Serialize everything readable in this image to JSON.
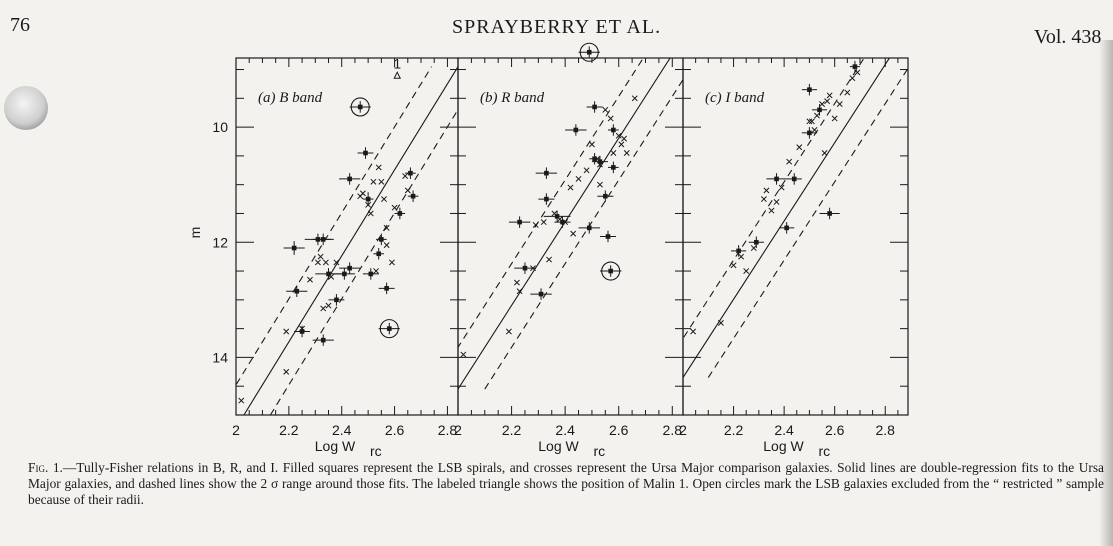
{
  "header": {
    "page_number": "76",
    "running_head": "SPRAYBERRY ET AL.",
    "volume": "Vol. 438"
  },
  "caption": {
    "lead": "Fig. 1.",
    "text": "—Tully-Fisher relations in B, R, and I. Filled squares represent the LSB spirals, and crosses represent the Ursa Major comparison galaxies. Solid lines are double-regression fits to the Ursa Major galaxies, and dashed lines show the 2 σ range around those fits. The labeled triangle shows the position of Malin 1. Open circles mark the LSB galaxies excluded from the “ restricted ” sample because of their radii."
  },
  "colors": {
    "ink": "#1a1a1a",
    "paper": "#f4f2ee"
  },
  "chart_data": [
    {
      "type": "scatter",
      "panel_label": "(a) B band",
      "xlabel": "Log W",
      "xlabel_sub": "rc",
      "ylabel": "m",
      "xlim": [
        2.0,
        2.84
      ],
      "ylim": [
        15.0,
        8.8
      ],
      "x_ticks": [
        "2",
        "2.2",
        "2.4",
        "2.6",
        "2.8"
      ],
      "y_ticks": [
        "10",
        "12",
        "14"
      ],
      "malin_label": "1",
      "fit": {
        "solid": [
          [
            2.03,
            15.0
          ],
          [
            2.84,
            8.95
          ]
        ],
        "dashed_offset": 0.1
      },
      "lsb": [
        [
          2.22,
          12.1,
          0.04,
          0.12
        ],
        [
          2.23,
          12.85,
          0.04,
          0.1
        ],
        [
          2.31,
          11.95,
          0.05,
          0.1
        ],
        [
          2.33,
          11.95,
          0.04,
          0.1
        ],
        [
          2.35,
          12.55,
          0.05,
          0.1
        ],
        [
          2.41,
          12.55,
          0.04,
          0.1
        ],
        [
          2.43,
          12.45,
          0.04,
          0.1
        ],
        [
          2.43,
          10.9,
          0.04,
          0.1
        ],
        [
          2.49,
          10.45,
          0.03,
          0.1
        ],
        [
          2.5,
          11.25,
          0.02,
          0.12
        ],
        [
          2.51,
          12.55,
          0.03,
          0.1
        ],
        [
          2.54,
          12.2,
          0.02,
          0.1
        ],
        [
          2.55,
          11.95,
          0.02,
          0.1
        ],
        [
          2.57,
          12.8,
          0.03,
          0.1
        ],
        [
          2.62,
          11.5,
          0.02,
          0.1
        ],
        [
          2.66,
          10.8,
          0.02,
          0.1
        ],
        [
          2.67,
          11.2,
          0.02,
          0.1
        ],
        [
          2.38,
          13.0,
          0.03,
          0.1
        ],
        [
          2.33,
          13.7,
          0.04,
          0.1
        ],
        [
          2.25,
          13.55,
          0.03,
          0.1
        ]
      ],
      "lsb_circled": [
        [
          2.47,
          9.65
        ],
        [
          2.58,
          13.5
        ]
      ],
      "crosses": [
        [
          2.02,
          14.75
        ],
        [
          2.19,
          13.55
        ],
        [
          2.19,
          14.25
        ],
        [
          2.25,
          13.5
        ],
        [
          2.28,
          12.65
        ],
        [
          2.33,
          13.15
        ],
        [
          2.35,
          13.1
        ],
        [
          2.31,
          12.35
        ],
        [
          2.32,
          12.25
        ],
        [
          2.36,
          12.6
        ],
        [
          2.38,
          12.35
        ],
        [
          2.47,
          11.2
        ],
        [
          2.48,
          11.15
        ],
        [
          2.5,
          11.35
        ],
        [
          2.51,
          11.5
        ],
        [
          2.52,
          10.95
        ],
        [
          2.54,
          10.7
        ],
        [
          2.55,
          10.95
        ],
        [
          2.56,
          11.25
        ],
        [
          2.57,
          11.75
        ],
        [
          2.6,
          11.4
        ],
        [
          2.64,
          10.85
        ],
        [
          2.65,
          11.1
        ],
        [
          2.57,
          12.05
        ],
        [
          2.59,
          12.35
        ],
        [
          2.53,
          12.5
        ],
        [
          2.34,
          12.35
        ]
      ],
      "malin": [
        2.61,
        9.1
      ]
    },
    {
      "type": "scatter",
      "panel_label": "(b) R band",
      "xlabel": "Log W",
      "xlabel_sub": "rc",
      "xlim": [
        2.0,
        2.84
      ],
      "ylim": [
        15.0,
        8.8
      ],
      "x_ticks": [
        "2",
        "2.2",
        "2.4",
        "2.6",
        "2.8"
      ],
      "fit": {
        "solid": [
          [
            2.0,
            14.55
          ],
          [
            2.84,
            8.45
          ]
        ],
        "dashed_offset": 0.1
      },
      "lsb": [
        [
          2.23,
          11.65,
          0.04,
          0.1
        ],
        [
          2.25,
          12.45,
          0.04,
          0.1
        ],
        [
          2.31,
          12.9,
          0.04,
          0.1
        ],
        [
          2.33,
          10.8,
          0.04,
          0.1
        ],
        [
          2.33,
          11.25,
          0.03,
          0.1
        ],
        [
          2.37,
          11.55,
          0.05,
          0.1
        ],
        [
          2.39,
          11.65,
          0.03,
          0.1
        ],
        [
          2.44,
          10.05,
          0.04,
          0.1
        ],
        [
          2.49,
          11.75,
          0.04,
          0.1
        ],
        [
          2.51,
          9.65,
          0.03,
          0.1
        ],
        [
          2.51,
          10.55,
          0.02,
          0.1
        ],
        [
          2.53,
          10.6,
          0.03,
          0.1
        ],
        [
          2.55,
          11.2,
          0.03,
          0.1
        ],
        [
          2.56,
          11.9,
          0.03,
          0.1
        ],
        [
          2.58,
          10.05,
          0.02,
          0.1
        ],
        [
          2.58,
          10.7,
          0.02,
          0.1
        ]
      ],
      "lsb_circled": [
        [
          2.49,
          8.7
        ],
        [
          2.57,
          12.5
        ]
      ],
      "crosses": [
        [
          2.02,
          13.95
        ],
        [
          2.19,
          13.55
        ],
        [
          2.22,
          12.7
        ],
        [
          2.23,
          12.85
        ],
        [
          2.28,
          12.45
        ],
        [
          2.29,
          11.7
        ],
        [
          2.32,
          11.65
        ],
        [
          2.34,
          12.3
        ],
        [
          2.36,
          11.5
        ],
        [
          2.38,
          11.6
        ],
        [
          2.4,
          11.65
        ],
        [
          2.42,
          11.05
        ],
        [
          2.43,
          11.85
        ],
        [
          2.45,
          10.9
        ],
        [
          2.48,
          10.75
        ],
        [
          2.5,
          10.3
        ],
        [
          2.52,
          10.55
        ],
        [
          2.53,
          10.65
        ],
        [
          2.55,
          9.7
        ],
        [
          2.57,
          9.85
        ],
        [
          2.58,
          10.45
        ],
        [
          2.6,
          10.15
        ],
        [
          2.61,
          10.3
        ],
        [
          2.62,
          10.2
        ],
        [
          2.63,
          10.45
        ],
        [
          2.66,
          9.5
        ],
        [
          2.53,
          11.0
        ]
      ],
      "malin": null
    },
    {
      "type": "scatter",
      "panel_label": "(c) I band",
      "xlabel": "Log W",
      "xlabel_sub": "rc",
      "xlim": [
        2.0,
        2.89
      ],
      "ylim": [
        15.0,
        8.8
      ],
      "x_ticks": [
        "2",
        "2.2",
        "2.4",
        "2.6",
        "2.8"
      ],
      "fit": {
        "solid": [
          [
            2.0,
            14.35
          ],
          [
            2.89,
            8.3
          ]
        ],
        "dashed_offset": 0.1
      },
      "lsb": [
        [
          2.22,
          12.15,
          0.03,
          0.1
        ],
        [
          2.29,
          12.0,
          0.03,
          0.1
        ],
        [
          2.37,
          10.9,
          0.04,
          0.1
        ],
        [
          2.41,
          11.75,
          0.03,
          0.1
        ],
        [
          2.44,
          10.9,
          0.03,
          0.1
        ],
        [
          2.5,
          9.35,
          0.03,
          0.1
        ],
        [
          2.5,
          10.1,
          0.03,
          0.1
        ],
        [
          2.54,
          9.7,
          0.03,
          0.1
        ],
        [
          2.58,
          11.5,
          0.04,
          0.1
        ],
        [
          2.68,
          8.95,
          0.02,
          0.1
        ]
      ],
      "lsb_circled": [],
      "crosses": [
        [
          2.04,
          13.55
        ],
        [
          2.15,
          13.4
        ],
        [
          2.2,
          12.4
        ],
        [
          2.23,
          12.25
        ],
        [
          2.25,
          12.5
        ],
        [
          2.28,
          12.1
        ],
        [
          2.32,
          11.25
        ],
        [
          2.33,
          11.1
        ],
        [
          2.35,
          11.45
        ],
        [
          2.37,
          11.3
        ],
        [
          2.39,
          11.05
        ],
        [
          2.42,
          10.6
        ],
        [
          2.46,
          10.35
        ],
        [
          2.5,
          9.9
        ],
        [
          2.51,
          9.9
        ],
        [
          2.53,
          9.8
        ],
        [
          2.55,
          9.6
        ],
        [
          2.57,
          9.55
        ],
        [
          2.58,
          9.45
        ],
        [
          2.6,
          9.85
        ],
        [
          2.62,
          9.6
        ],
        [
          2.65,
          9.4
        ],
        [
          2.67,
          9.15
        ],
        [
          2.69,
          9.05
        ],
        [
          2.52,
          10.05
        ],
        [
          2.56,
          10.45
        ]
      ],
      "malin": null
    }
  ]
}
